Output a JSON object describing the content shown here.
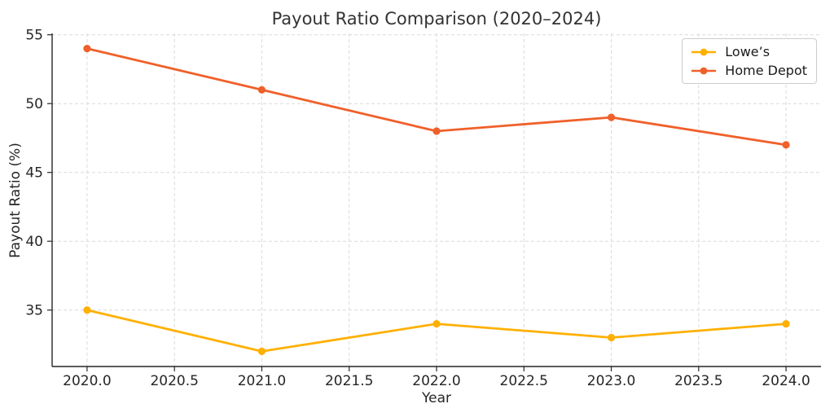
{
  "chart_data": {
    "type": "line",
    "title": "Payout Ratio Comparison (2020–2024)",
    "xlabel": "Year",
    "ylabel": "Payout Ratio (%)",
    "x": [
      2020,
      2021,
      2022,
      2023,
      2024
    ],
    "series": [
      {
        "name": "Lowe’s",
        "color": "#FFB000",
        "values": [
          35,
          32,
          34,
          33,
          34
        ]
      },
      {
        "name": "Home Depot",
        "color": "#F0602A",
        "values": [
          54,
          51,
          48,
          49,
          47
        ]
      }
    ],
    "xlim": [
      2019.8,
      2024.2
    ],
    "ylim": [
      30.9,
      55.1
    ],
    "xticks": [
      2020.0,
      2020.5,
      2021.0,
      2021.5,
      2022.0,
      2022.5,
      2023.0,
      2023.5,
      2024.0
    ],
    "xtick_labels": [
      "2020.0",
      "2020.5",
      "2021.0",
      "2021.5",
      "2022.0",
      "2022.5",
      "2023.0",
      "2023.5",
      "2024.0"
    ],
    "yticks": [
      35,
      40,
      45,
      50,
      55
    ],
    "ytick_labels": [
      "35",
      "40",
      "45",
      "50",
      "55"
    ],
    "grid": true,
    "grid_style": "dashed",
    "legend_position": "upper right",
    "legend_entries": [
      "Lowe’s",
      "Home Depot"
    ]
  },
  "style": {
    "grid_color": "#d9d9d9",
    "spine_color": "#262626",
    "text_color": "#262626",
    "legend_border_color": "#cccccc",
    "background_color": "#ffffff"
  }
}
